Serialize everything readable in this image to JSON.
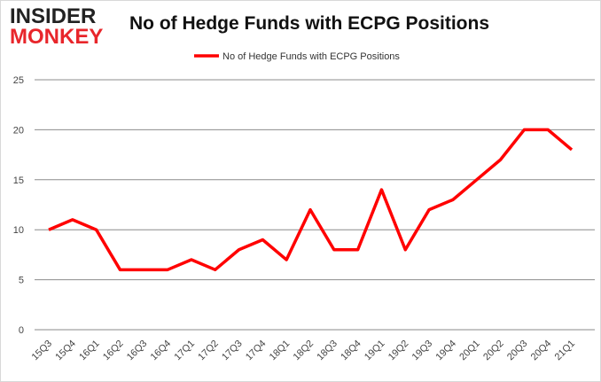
{
  "logo": {
    "line1": "INSIDER",
    "line2": "MONKEY"
  },
  "chart_data": {
    "type": "line",
    "title": "No of Hedge Funds with ECPG Positions",
    "xlabel": "",
    "ylabel": "",
    "categories": [
      "15Q3",
      "15Q4",
      "16Q1",
      "16Q2",
      "16Q3",
      "16Q4",
      "17Q1",
      "17Q2",
      "17Q3",
      "17Q4",
      "18Q1",
      "18Q2",
      "18Q3",
      "18Q4",
      "19Q1",
      "19Q2",
      "19Q3",
      "19Q4",
      "20Q1",
      "20Q2",
      "20Q3",
      "20Q4",
      "21Q1"
    ],
    "series": [
      {
        "name": "No of Hedge Funds with ECPG Positions",
        "values": [
          10,
          11,
          10,
          6,
          6,
          6,
          7,
          6,
          8,
          9,
          7,
          12,
          8,
          8,
          14,
          8,
          12,
          13,
          15,
          17,
          20,
          20,
          18
        ],
        "color": "#ff0000"
      }
    ],
    "ylim": [
      0,
      25
    ],
    "yticks": [
      0,
      5,
      10,
      15,
      20,
      25
    ],
    "grid": true,
    "legend": "top-center"
  }
}
